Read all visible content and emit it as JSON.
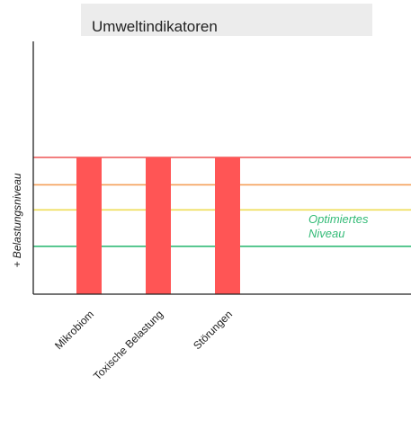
{
  "chart_data": {
    "type": "bar",
    "title": "Umweltindikatoren",
    "ylabel": "+ Belastungsniveau",
    "xlabel": "",
    "categories": [
      "Mikrobiom",
      "Toxische Belastung",
      "Störungen"
    ],
    "values": [
      3.0,
      3.0,
      3.0
    ],
    "bar_color": "#ff5555",
    "ylim": [
      0,
      3.0
    ],
    "reference_lines": [
      {
        "value": 3.0,
        "color": "#ee5555"
      },
      {
        "value": 2.4,
        "color": "#f5a05a"
      },
      {
        "value": 1.85,
        "color": "#eedd55"
      },
      {
        "value": 1.05,
        "color": "#33bb77"
      }
    ],
    "annotation": {
      "line1": "Optimiertes",
      "line2": "Niveau",
      "color": "#33bb77"
    },
    "grid": false
  }
}
